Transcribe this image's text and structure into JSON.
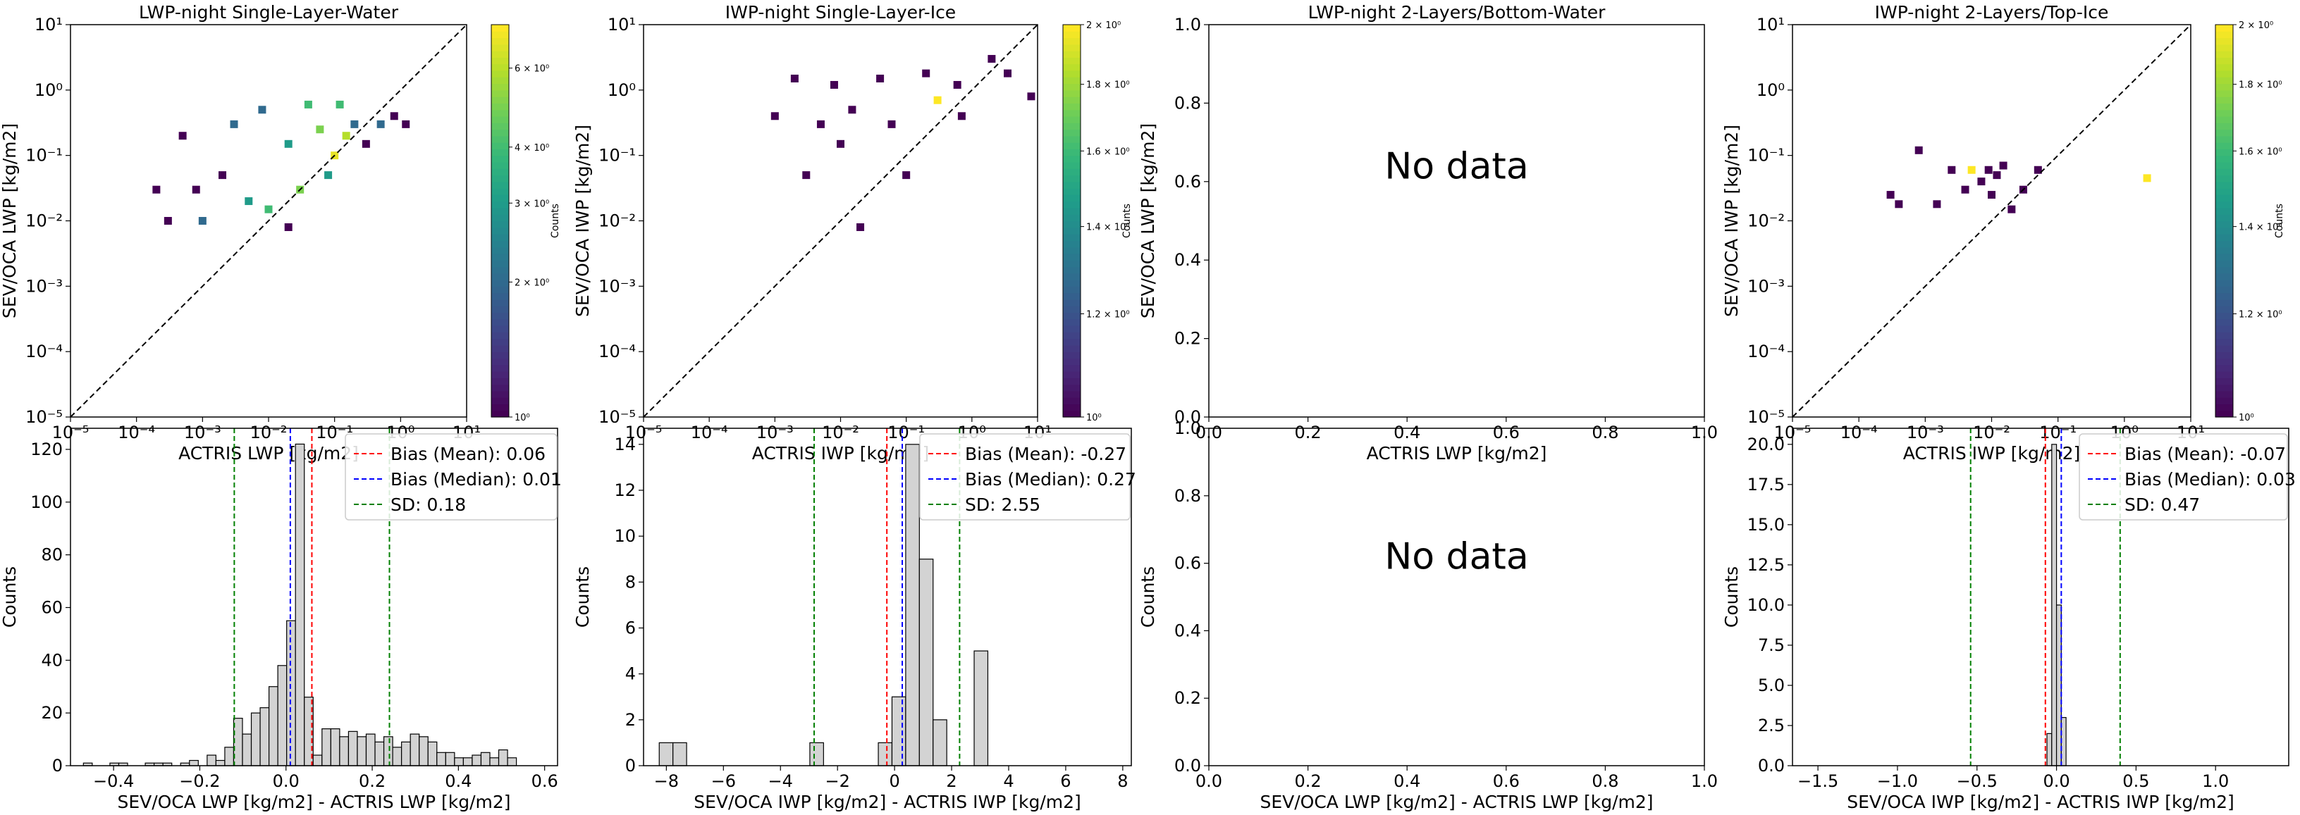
{
  "colors": {
    "diagonal": "#000000",
    "bias_mean": "#ff0000",
    "bias_median": "#0000ff",
    "sd": "#008000",
    "hist_fill": "#d3d3d3",
    "hist_edge": "#000000",
    "viridis": [
      "#440154",
      "#482878",
      "#3e4989",
      "#31688e",
      "#26828e",
      "#1f9e89",
      "#35b779",
      "#6ece58",
      "#b5de2b",
      "#fde725"
    ]
  },
  "chart_data": [
    {
      "type": "heatmap",
      "title": "LWP-night Single-Layer-Water",
      "xlabel": "ACTRIS LWP [kg/m2]",
      "ylabel": "SEV/OCA LWP [kg/m2]",
      "xscale": "log",
      "yscale": "log",
      "xlim": [
        1e-05,
        10
      ],
      "ylim": [
        1e-05,
        10
      ],
      "xticks": [
        "10⁻⁵",
        "10⁻⁴",
        "10⁻³",
        "10⁻²",
        "10⁻¹",
        "10⁰",
        "10¹"
      ],
      "yticks": [
        "10⁻⁵",
        "10⁻⁴",
        "10⁻³",
        "10⁻²",
        "10⁻¹",
        "10⁰",
        "10¹"
      ],
      "diagonal": true,
      "colorbar": {
        "label": "Counts",
        "scale": "log",
        "range": [
          1,
          7.5
        ],
        "ticks": [
          "10⁰",
          "2 × 10⁰",
          "3 × 10⁰",
          "4 × 10⁰",
          "6 × 10⁰"
        ],
        "tick_values": [
          1,
          2,
          3,
          4,
          6
        ]
      },
      "cells": [
        {
          "x": 0.0002,
          "y": 0.03,
          "c": 1
        },
        {
          "x": 0.0003,
          "y": 0.01,
          "c": 1
        },
        {
          "x": 0.0005,
          "y": 0.2,
          "c": 1
        },
        {
          "x": 0.0008,
          "y": 0.03,
          "c": 1
        },
        {
          "x": 0.001,
          "y": 0.01,
          "c": 2
        },
        {
          "x": 0.002,
          "y": 0.05,
          "c": 1
        },
        {
          "x": 0.003,
          "y": 0.3,
          "c": 2
        },
        {
          "x": 0.005,
          "y": 0.02,
          "c": 3
        },
        {
          "x": 0.008,
          "y": 0.5,
          "c": 2
        },
        {
          "x": 0.01,
          "y": 0.015,
          "c": 4
        },
        {
          "x": 0.02,
          "y": 0.15,
          "c": 3
        },
        {
          "x": 0.03,
          "y": 0.03,
          "c": 5
        },
        {
          "x": 0.04,
          "y": 0.6,
          "c": 4
        },
        {
          "x": 0.06,
          "y": 0.25,
          "c": 5
        },
        {
          "x": 0.08,
          "y": 0.05,
          "c": 3
        },
        {
          "x": 0.1,
          "y": 0.1,
          "c": 7
        },
        {
          "x": 0.12,
          "y": 0.6,
          "c": 4
        },
        {
          "x": 0.15,
          "y": 0.2,
          "c": 6
        },
        {
          "x": 0.2,
          "y": 0.3,
          "c": 2
        },
        {
          "x": 0.3,
          "y": 0.15,
          "c": 1
        },
        {
          "x": 0.5,
          "y": 0.3,
          "c": 2
        },
        {
          "x": 0.8,
          "y": 0.4,
          "c": 1
        },
        {
          "x": 1.2,
          "y": 0.3,
          "c": 1
        },
        {
          "x": 0.02,
          "y": 0.008,
          "c": 1
        }
      ]
    },
    {
      "type": "heatmap",
      "title": "IWP-night Single-Layer-Ice",
      "xlabel": "ACTRIS IWP [kg/m2]",
      "ylabel": "SEV/OCA IWP [kg/m2]",
      "xscale": "log",
      "yscale": "log",
      "xlim": [
        1e-05,
        10
      ],
      "ylim": [
        1e-05,
        10
      ],
      "xticks": [
        "10⁻⁵",
        "10⁻⁴",
        "10⁻³",
        "10⁻²",
        "10⁻¹",
        "10⁰",
        "10¹"
      ],
      "yticks": [
        "10⁻⁵",
        "10⁻⁴",
        "10⁻³",
        "10⁻²",
        "10⁻¹",
        "10⁰",
        "10¹"
      ],
      "diagonal": true,
      "colorbar": {
        "label": "Counts",
        "scale": "log",
        "range": [
          1,
          2
        ],
        "ticks": [
          "10⁰",
          "1.2 × 10⁰",
          "1.4 × 10⁰",
          "1.6 × 10⁰",
          "1.8 × 10⁰",
          "2 × 10⁰"
        ],
        "tick_values": [
          1,
          1.2,
          1.4,
          1.6,
          1.8,
          2
        ]
      },
      "cells": [
        {
          "x": 0.001,
          "y": 0.4,
          "c": 1
        },
        {
          "x": 0.002,
          "y": 1.5,
          "c": 1
        },
        {
          "x": 0.003,
          "y": 0.05,
          "c": 1
        },
        {
          "x": 0.005,
          "y": 0.3,
          "c": 1
        },
        {
          "x": 0.008,
          "y": 1.2,
          "c": 1
        },
        {
          "x": 0.01,
          "y": 0.15,
          "c": 1
        },
        {
          "x": 0.015,
          "y": 0.5,
          "c": 1
        },
        {
          "x": 0.02,
          "y": 0.008,
          "c": 1
        },
        {
          "x": 0.04,
          "y": 1.5,
          "c": 1
        },
        {
          "x": 0.06,
          "y": 0.3,
          "c": 1
        },
        {
          "x": 0.1,
          "y": 0.05,
          "c": 1
        },
        {
          "x": 0.2,
          "y": 1.8,
          "c": 1
        },
        {
          "x": 0.3,
          "y": 0.7,
          "c": 2
        },
        {
          "x": 0.6,
          "y": 1.2,
          "c": 1
        },
        {
          "x": 0.7,
          "y": 0.4,
          "c": 1
        },
        {
          "x": 2,
          "y": 3,
          "c": 1
        },
        {
          "x": 3.5,
          "y": 1.8,
          "c": 1
        },
        {
          "x": 8,
          "y": 0.8,
          "c": 1
        }
      ]
    },
    {
      "type": "heatmap",
      "title": "LWP-night 2-Layers/Bottom-Water",
      "xlabel": "ACTRIS LWP [kg/m2]",
      "ylabel": "SEV/OCA LWP [kg/m2]",
      "xscale": "linear",
      "yscale": "linear",
      "xlim": [
        0,
        1
      ],
      "ylim": [
        0,
        1
      ],
      "xticks": [
        "0.0",
        "0.2",
        "0.4",
        "0.6",
        "0.8",
        "1.0"
      ],
      "yticks": [
        "0.0",
        "0.2",
        "0.4",
        "0.6",
        "0.8",
        "1.0"
      ],
      "annotation": "No data",
      "cells": []
    },
    {
      "type": "heatmap",
      "title": "IWP-night 2-Layers/Top-Ice",
      "xlabel": "ACTRIS IWP [kg/m2]",
      "ylabel": "SEV/OCA IWP [kg/m2]",
      "xscale": "log",
      "yscale": "log",
      "xlim": [
        1e-05,
        10
      ],
      "ylim": [
        1e-05,
        10
      ],
      "xticks": [
        "10⁻⁵",
        "10⁻⁴",
        "10⁻³",
        "10⁻²",
        "10⁻¹",
        "10⁰",
        "10¹"
      ],
      "yticks": [
        "10⁻⁵",
        "10⁻⁴",
        "10⁻³",
        "10⁻²",
        "10⁻¹",
        "10⁰",
        "10¹"
      ],
      "diagonal": true,
      "colorbar": {
        "label": "Counts",
        "scale": "log",
        "range": [
          1,
          2
        ],
        "ticks": [
          "10⁰",
          "1.2 × 10⁰",
          "1.4 × 10⁰",
          "1.6 × 10⁰",
          "1.8 × 10⁰",
          "2 × 10⁰"
        ],
        "tick_values": [
          1,
          1.2,
          1.4,
          1.6,
          1.8,
          2
        ]
      },
      "cells": [
        {
          "x": 0.0003,
          "y": 0.025,
          "c": 1
        },
        {
          "x": 0.0004,
          "y": 0.018,
          "c": 1
        },
        {
          "x": 0.0008,
          "y": 0.12,
          "c": 1
        },
        {
          "x": 0.0015,
          "y": 0.018,
          "c": 1
        },
        {
          "x": 0.0025,
          "y": 0.06,
          "c": 1
        },
        {
          "x": 0.004,
          "y": 0.03,
          "c": 1
        },
        {
          "x": 0.005,
          "y": 0.06,
          "c": 2
        },
        {
          "x": 0.007,
          "y": 0.04,
          "c": 1
        },
        {
          "x": 0.009,
          "y": 0.06,
          "c": 1
        },
        {
          "x": 0.01,
          "y": 0.025,
          "c": 1
        },
        {
          "x": 0.012,
          "y": 0.05,
          "c": 1
        },
        {
          "x": 0.015,
          "y": 0.07,
          "c": 1
        },
        {
          "x": 0.02,
          "y": 0.015,
          "c": 1
        },
        {
          "x": 0.03,
          "y": 0.03,
          "c": 1
        },
        {
          "x": 0.05,
          "y": 0.06,
          "c": 1
        },
        {
          "x": 2.2,
          "y": 0.045,
          "c": 2
        }
      ]
    },
    {
      "type": "bar",
      "subtype": "histogram",
      "xlabel": "SEV/OCA LWP [kg/m2] - ACTRIS LWP [kg/m2]",
      "ylabel": "Counts",
      "xlim": [
        -0.5,
        0.63
      ],
      "ylim": [
        0,
        128
      ],
      "xticks": [
        "−0.4",
        "−0.2",
        "0.0",
        "0.2",
        "0.4",
        "0.6"
      ],
      "xtick_values": [
        -0.4,
        -0.2,
        0,
        0.2,
        0.4,
        0.6
      ],
      "yticks": [
        "0",
        "20",
        "40",
        "60",
        "80",
        "100",
        "120"
      ],
      "ytick_values": [
        0,
        20,
        40,
        60,
        80,
        100,
        120
      ],
      "bin_start": -0.47,
      "bin_width": 0.0205,
      "counts": [
        1,
        0,
        0,
        1,
        1,
        0,
        0,
        1,
        1,
        1,
        0,
        1,
        2,
        0,
        4,
        2,
        7,
        18,
        12,
        20,
        22,
        30,
        38,
        55,
        122,
        26,
        4,
        14,
        14,
        11,
        13,
        11,
        12,
        9,
        11,
        7,
        9,
        12,
        11,
        9,
        5,
        5,
        3,
        3,
        4,
        5,
        3,
        6,
        3
      ],
      "lines": [
        {
          "label": "Bias (Mean): 0.06",
          "x": 0.06,
          "color": "#ff0000"
        },
        {
          "label": "Bias (Median): 0.01",
          "x": 0.01,
          "color": "#0000ff"
        },
        {
          "label": "SD: 0.18",
          "x": [
            -0.12,
            0.24
          ],
          "color": "#008000"
        }
      ],
      "legend_position": "top-right"
    },
    {
      "type": "bar",
      "subtype": "histogram",
      "xlabel": "SEV/OCA IWP [kg/m2] - ACTRIS IWP [kg/m2]",
      "ylabel": "Counts",
      "xlim": [
        -8.8,
        8.3
      ],
      "ylim": [
        0,
        14.7
      ],
      "xticks": [
        "−8",
        "−6",
        "−4",
        "−2",
        "0",
        "2",
        "4",
        "6",
        "8"
      ],
      "xtick_values": [
        -8,
        -6,
        -4,
        -2,
        0,
        2,
        4,
        6,
        8
      ],
      "yticks": [
        "0",
        "2",
        "4",
        "6",
        "8",
        "10",
        "12",
        "14"
      ],
      "ytick_values": [
        0,
        2,
        4,
        6,
        8,
        10,
        12,
        14
      ],
      "bin_start": -8.25,
      "bin_width": 0.48,
      "counts": [
        1,
        1,
        0,
        0,
        0,
        0,
        0,
        0,
        0,
        0,
        0,
        1,
        0,
        0,
        0,
        0,
        1,
        3,
        14,
        9,
        2,
        0,
        0,
        5
      ],
      "lines": [
        {
          "label": "Bias (Mean): -0.27",
          "x": -0.27,
          "color": "#ff0000"
        },
        {
          "label": "Bias (Median): 0.27",
          "x": 0.27,
          "color": "#0000ff"
        },
        {
          "label": "SD: 2.55",
          "x": [
            -2.82,
            2.28
          ],
          "color": "#008000"
        }
      ],
      "legend_position": "top-right"
    },
    {
      "type": "bar",
      "subtype": "histogram",
      "xlabel": "SEV/OCA LWP [kg/m2] - ACTRIS LWP [kg/m2]",
      "ylabel": "Counts",
      "xlim": [
        0,
        1
      ],
      "ylim": [
        0,
        1
      ],
      "xticks": [
        "0.0",
        "0.2",
        "0.4",
        "0.6",
        "0.8",
        "1.0"
      ],
      "xtick_values": [
        0,
        0.2,
        0.4,
        0.6,
        0.8,
        1
      ],
      "yticks": [
        "0.0",
        "0.2",
        "0.4",
        "0.6",
        "0.8",
        "1.0"
      ],
      "ytick_values": [
        0,
        0.2,
        0.4,
        0.6,
        0.8,
        1
      ],
      "annotation": "No data",
      "counts": [],
      "lines": []
    },
    {
      "type": "bar",
      "subtype": "histogram",
      "xlabel": "SEV/OCA IWP [kg/m2] - ACTRIS IWP [kg/m2]",
      "ylabel": "Counts",
      "xlim": [
        -1.66,
        1.46
      ],
      "ylim": [
        0,
        21
      ],
      "xticks": [
        "−1.5",
        "−1.0",
        "−0.5",
        "0.0",
        "0.5",
        "1.0"
      ],
      "xtick_values": [
        -1.5,
        -1,
        -0.5,
        0,
        0.5,
        1
      ],
      "yticks": [
        "0.0",
        "2.5",
        "5.0",
        "7.5",
        "10.0",
        "12.5",
        "15.0",
        "17.5",
        "20.0"
      ],
      "ytick_values": [
        0,
        2.5,
        5,
        7.5,
        10,
        12.5,
        15,
        17.5,
        20
      ],
      "bin_start": -0.06,
      "bin_width": 0.03,
      "counts": [
        2,
        20,
        10,
        3
      ],
      "lines": [
        {
          "label": "Bias (Mean): -0.07",
          "x": -0.07,
          "color": "#ff0000"
        },
        {
          "label": "Bias (Median): 0.03",
          "x": 0.03,
          "color": "#0000ff"
        },
        {
          "label": "SD: 0.47",
          "x": [
            -0.54,
            0.4
          ],
          "color": "#008000"
        }
      ],
      "legend_position": "top-right"
    }
  ]
}
